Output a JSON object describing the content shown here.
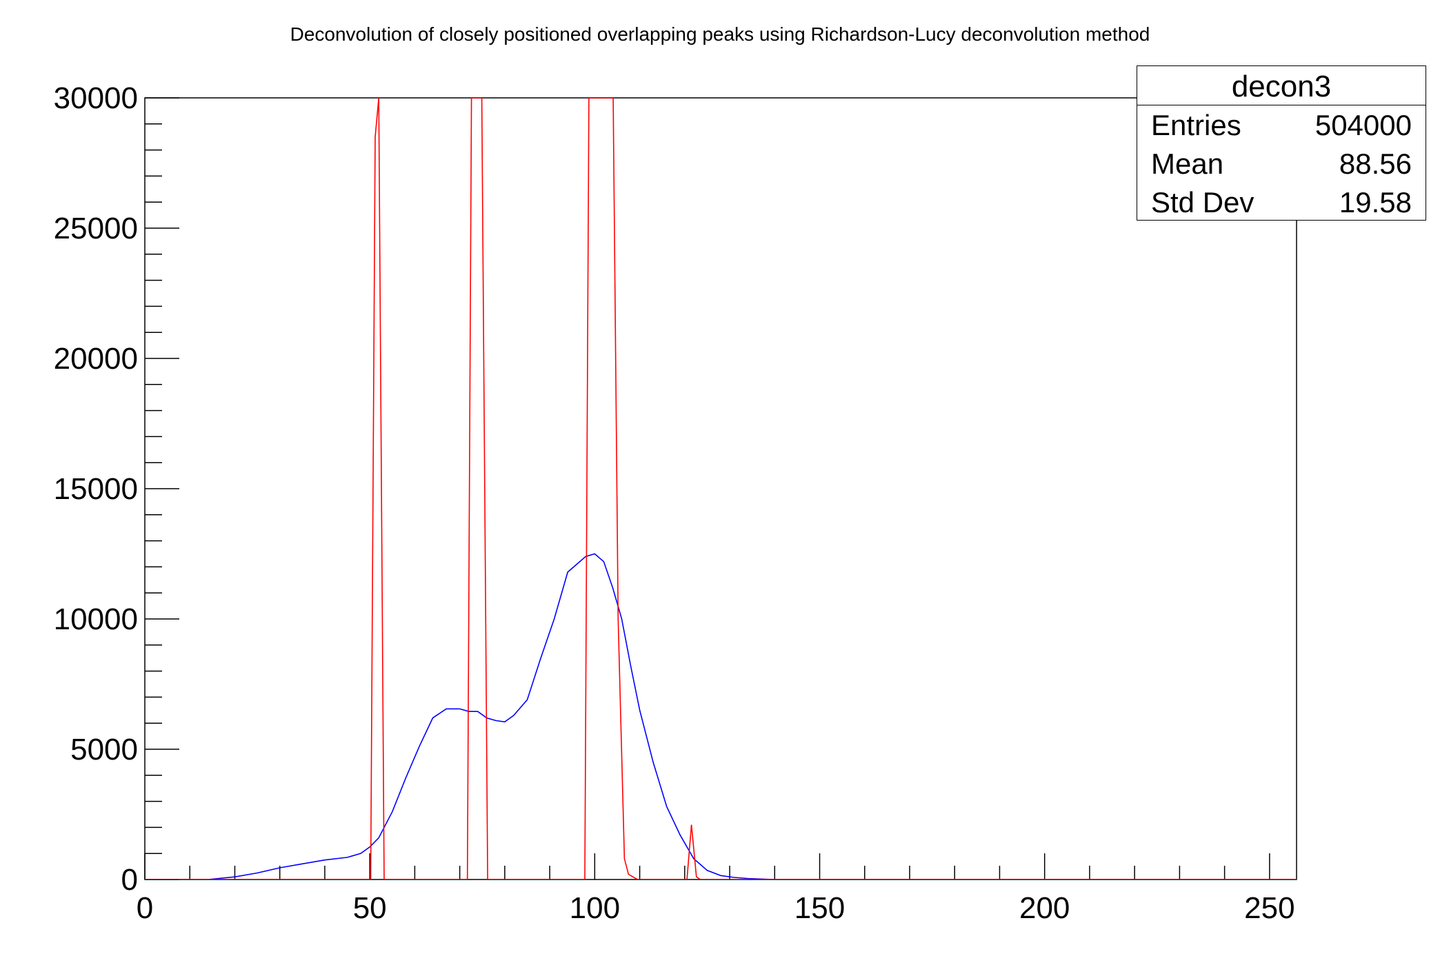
{
  "chart_data": {
    "type": "line",
    "title": "Deconvolution of closely positioned overlapping peaks using Richardson-Lucy deconvolution method",
    "xlabel": "",
    "ylabel": "",
    "xlim": [
      0,
      256
    ],
    "ylim": [
      0,
      30000
    ],
    "x_ticks": [
      0,
      50,
      100,
      150,
      200,
      250
    ],
    "y_ticks": [
      0,
      5000,
      10000,
      15000,
      20000,
      25000,
      30000
    ],
    "grid": false,
    "stats": {
      "name": "decon3",
      "rows": [
        {
          "label": "Entries",
          "value": "504000"
        },
        {
          "label": "Mean",
          "value": "88.56"
        },
        {
          "label": "Std Dev",
          "value": "19.58"
        }
      ]
    },
    "series": [
      {
        "color": "#0000ff",
        "x": [
          0,
          14,
          20,
          25,
          30,
          35,
          40,
          45,
          48,
          50,
          52,
          55,
          58,
          61,
          64,
          67,
          70,
          72,
          74,
          76,
          78,
          80,
          82,
          85,
          88,
          91,
          94,
          96,
          98,
          100,
          102,
          104,
          106,
          108,
          110,
          113,
          116,
          119,
          122,
          125,
          128,
          131,
          134,
          138,
          140,
          256
        ],
        "y": [
          0,
          0,
          100,
          250,
          450,
          600,
          750,
          850,
          1000,
          1250,
          1600,
          2600,
          3900,
          5100,
          6200,
          6550,
          6550,
          6450,
          6450,
          6200,
          6100,
          6050,
          6300,
          6900,
          8500,
          10000,
          11800,
          12100,
          12400,
          12500,
          12200,
          11200,
          10000,
          8200,
          6500,
          4500,
          2800,
          1700,
          800,
          350,
          150,
          80,
          40,
          10,
          0,
          0
        ]
      },
      {
        "color": "#ff0000",
        "x": [
          0,
          50.2,
          51.2,
          52.0,
          53.2,
          71.7,
          72.6,
          74.9,
          76.2,
          97.8,
          98.7,
          104.1,
          105.2,
          106.6,
          107.5,
          109.5,
          120.5,
          121.5,
          122.6,
          123.5,
          125.0,
          256
        ],
        "y": [
          0,
          0,
          28500,
          30000,
          0,
          0,
          30000,
          30000,
          0,
          0,
          30000,
          30000,
          10000,
          800,
          200,
          0,
          0,
          2100,
          100,
          0,
          0,
          0
        ]
      }
    ]
  }
}
